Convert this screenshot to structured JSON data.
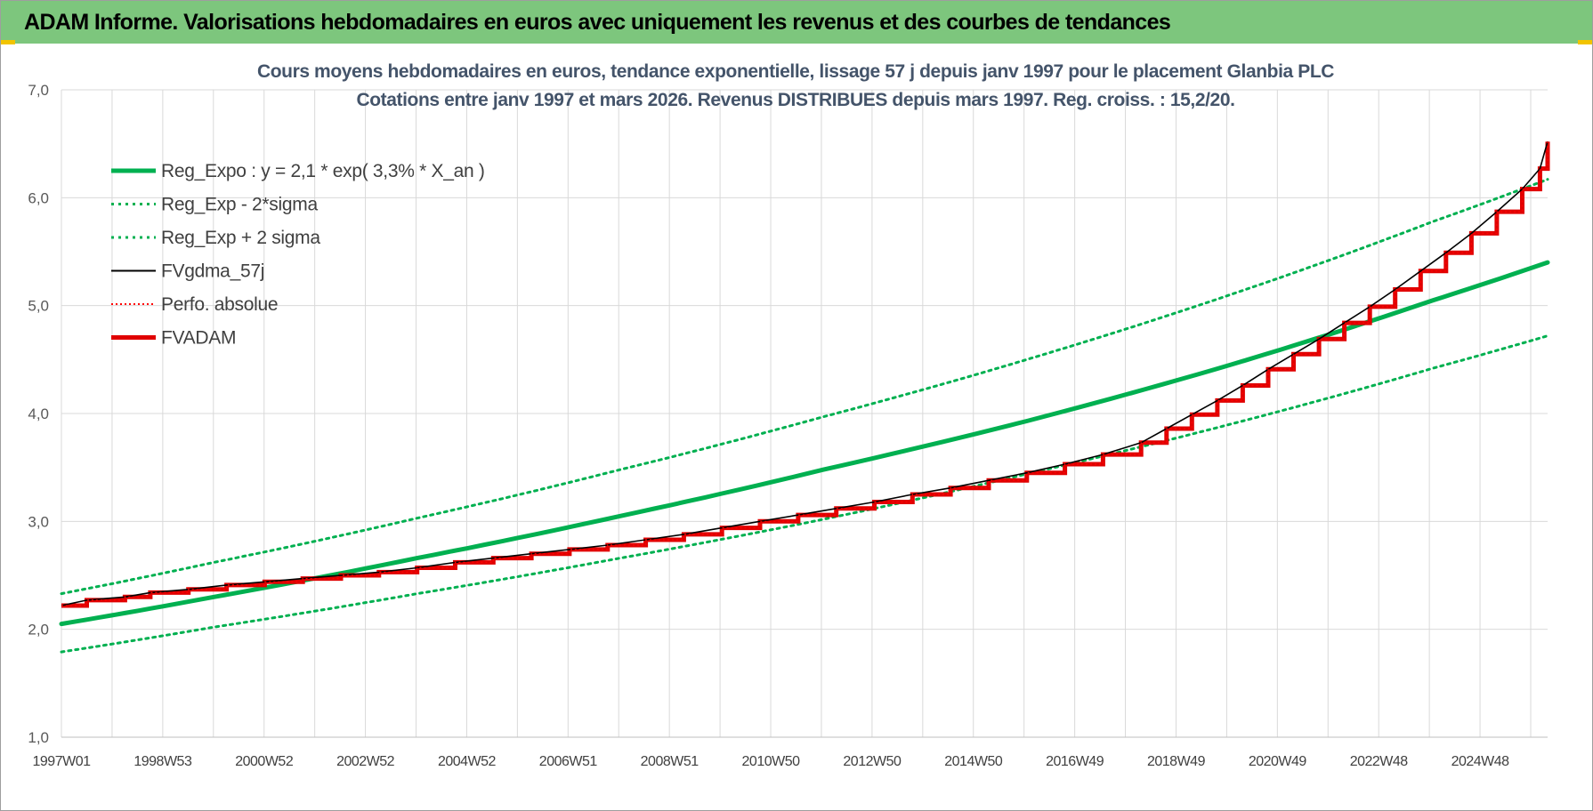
{
  "banner": {
    "title": "ADAM Informe. Valorisations hebdomadaires en euros avec uniquement les revenus et des courbes de tendances"
  },
  "colors": {
    "banner_bg": "#7dc67d",
    "reg_expo": "#00b050",
    "fvgdma": "#000000",
    "perfo": "#ff0000",
    "fvadam": "#e00000",
    "title_text": "#44546a"
  },
  "chart_data": {
    "type": "line",
    "title": [
      "Cours moyens hebdomadaires en euros, tendance exponentielle, lissage 57 j depuis janv 1997 pour le placement Glanbia PLC",
      "Cotations entre janv 1997 et mars 2026. Revenus DISTRIBUES depuis mars 1997. Reg. croiss. : 15,2/20."
    ],
    "ylim": [
      1.0,
      7.0
    ],
    "yticks": [
      "1,0",
      "2,0",
      "3,0",
      "4,0",
      "5,0",
      "6,0",
      "7,0"
    ],
    "xlim": [
      1997.0,
      2026.25
    ],
    "xtick_labels": [
      "1997W01",
      "1998W53",
      "2000W52",
      "2002W52",
      "2004W52",
      "2006W51",
      "2008W51",
      "2010W50",
      "2012W50",
      "2014W50",
      "2016W49",
      "2018W49",
      "2020W49",
      "2022W48",
      "2024W48"
    ],
    "grid": true,
    "legend_position": "top-left",
    "legend": [
      {
        "key": "reg",
        "label": "Reg_Expo : y = 2,1 * exp( 3,3% *  X_an )",
        "style": "solid-thick",
        "color": "#00b050"
      },
      {
        "key": "low",
        "label": "Reg_Exp - 2*sigma",
        "style": "dotted",
        "color": "#00b050"
      },
      {
        "key": "high",
        "label": "Reg_Exp + 2 sigma",
        "style": "dotted",
        "color": "#00b050"
      },
      {
        "key": "fvg",
        "label": "FVgdma_57j",
        "style": "solid",
        "color": "#000000"
      },
      {
        "key": "perfo",
        "label": "Perfo. absolue",
        "style": "dotted-thin",
        "color": "#ff0000"
      },
      {
        "key": "fvadam",
        "label": "FVADAM",
        "style": "solid-thick",
        "color": "#e00000"
      }
    ],
    "series": [
      {
        "key": "reg",
        "points": [
          [
            1997.0,
            2.05
          ],
          [
            2000.0,
            2.3
          ],
          [
            2004.0,
            2.66
          ],
          [
            2008.0,
            3.05
          ],
          [
            2012.0,
            3.48
          ],
          [
            2016.0,
            3.93
          ],
          [
            2020.0,
            4.45
          ],
          [
            2024.0,
            5.05
          ],
          [
            2026.25,
            5.4
          ]
        ]
      },
      {
        "key": "low",
        "points": [
          [
            1997.0,
            1.79
          ],
          [
            2000.0,
            2.02
          ],
          [
            2004.0,
            2.33
          ],
          [
            2008.0,
            2.66
          ],
          [
            2012.0,
            3.02
          ],
          [
            2016.0,
            3.44
          ],
          [
            2020.0,
            3.9
          ],
          [
            2024.0,
            4.42
          ],
          [
            2026.25,
            4.72
          ]
        ]
      },
      {
        "key": "high",
        "points": [
          [
            1997.0,
            2.33
          ],
          [
            2000.0,
            2.62
          ],
          [
            2004.0,
            3.03
          ],
          [
            2008.0,
            3.48
          ],
          [
            2012.0,
            3.97
          ],
          [
            2016.0,
            4.5
          ],
          [
            2020.0,
            5.1
          ],
          [
            2024.0,
            5.78
          ],
          [
            2026.25,
            6.17
          ]
        ]
      },
      {
        "key": "fvadam",
        "steps": [
          [
            1997.0,
            2.22
          ],
          [
            1997.5,
            2.27
          ],
          [
            1998.25,
            2.3
          ],
          [
            1998.75,
            2.34
          ],
          [
            1999.5,
            2.37
          ],
          [
            2000.25,
            2.41
          ],
          [
            2001.0,
            2.44
          ],
          [
            2001.75,
            2.47
          ],
          [
            2002.5,
            2.5
          ],
          [
            2003.25,
            2.53
          ],
          [
            2004.0,
            2.57
          ],
          [
            2004.75,
            2.62
          ],
          [
            2005.5,
            2.66
          ],
          [
            2006.25,
            2.7
          ],
          [
            2007.0,
            2.74
          ],
          [
            2007.75,
            2.78
          ],
          [
            2008.5,
            2.83
          ],
          [
            2009.25,
            2.88
          ],
          [
            2010.0,
            2.94
          ],
          [
            2010.75,
            3.0
          ],
          [
            2011.5,
            3.06
          ],
          [
            2012.25,
            3.12
          ],
          [
            2013.0,
            3.18
          ],
          [
            2013.75,
            3.25
          ],
          [
            2014.5,
            3.31
          ],
          [
            2015.25,
            3.38
          ],
          [
            2016.0,
            3.45
          ],
          [
            2016.75,
            3.53
          ],
          [
            2017.5,
            3.62
          ],
          [
            2018.25,
            3.73
          ],
          [
            2018.75,
            3.86
          ],
          [
            2019.25,
            3.99
          ],
          [
            2019.75,
            4.12
          ],
          [
            2020.25,
            4.26
          ],
          [
            2020.75,
            4.41
          ],
          [
            2021.25,
            4.55
          ],
          [
            2021.75,
            4.69
          ],
          [
            2022.25,
            4.84
          ],
          [
            2022.75,
            4.99
          ],
          [
            2023.25,
            5.15
          ],
          [
            2023.75,
            5.32
          ],
          [
            2024.25,
            5.49
          ],
          [
            2024.75,
            5.67
          ],
          [
            2025.25,
            5.87
          ],
          [
            2025.75,
            6.08
          ],
          [
            2026.1,
            6.27
          ],
          [
            2026.25,
            6.52
          ]
        ]
      }
    ]
  }
}
